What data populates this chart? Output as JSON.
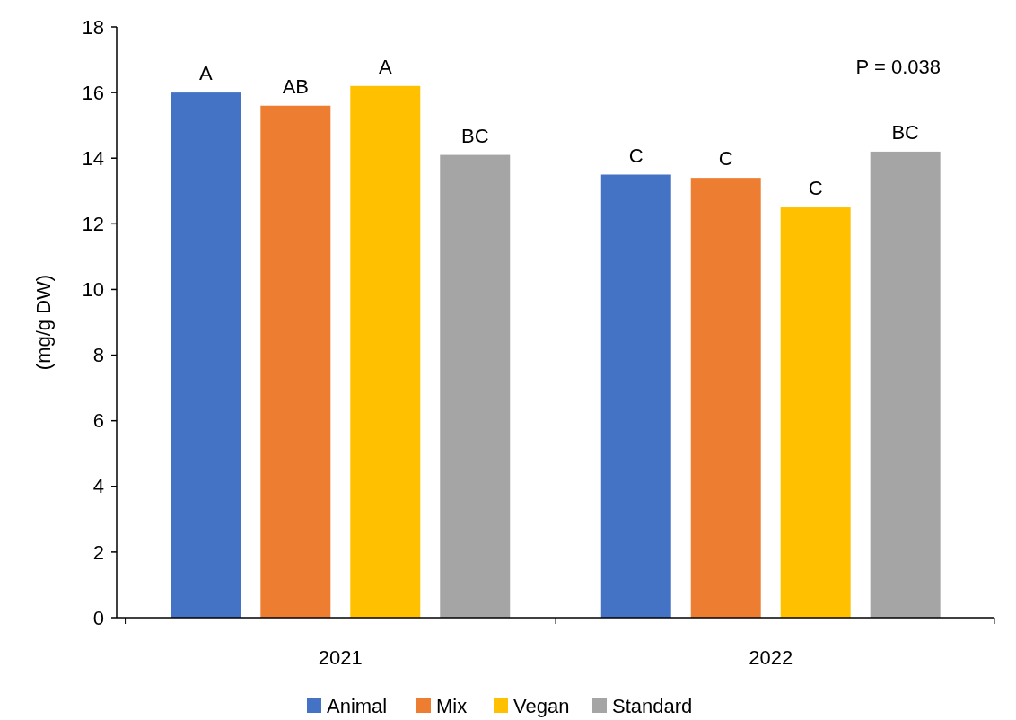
{
  "chart_data": {
    "type": "bar",
    "ylabel": "(mg/g DW)",
    "categories": [
      "2021",
      "2022"
    ],
    "series": [
      {
        "name": "Animal",
        "color": "#4472c4",
        "values": [
          16.0,
          13.5
        ],
        "value_labels": [
          "A",
          "C"
        ]
      },
      {
        "name": "Mix",
        "color": "#ed7d31",
        "values": [
          15.6,
          13.4
        ],
        "value_labels": [
          "AB",
          "C"
        ]
      },
      {
        "name": "Vegan",
        "color": "#ffc000",
        "values": [
          16.2,
          12.5
        ],
        "value_labels": [
          "A",
          "C"
        ]
      },
      {
        "name": "Standard",
        "color": "#a5a5a5",
        "values": [
          14.1,
          14.2
        ],
        "value_labels": [
          "BC",
          "BC"
        ]
      }
    ],
    "ylim": [
      0,
      18
    ],
    "yticks": [
      0,
      2,
      4,
      6,
      8,
      10,
      12,
      14,
      16,
      18
    ],
    "grid": false,
    "legend": "bottom",
    "annotations": [
      "P = 0.038"
    ]
  }
}
